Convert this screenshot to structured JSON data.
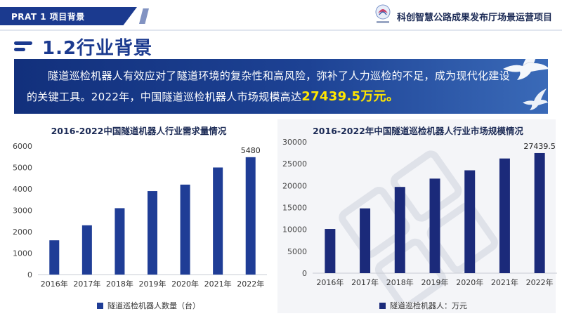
{
  "header": {
    "section_tag": "PRAT 1   项目背景",
    "project_title": "科创智慧公路成果发布厅场景运营项目"
  },
  "heading": "1.2行业背景",
  "banner": {
    "text": "隧道巡检机器人有效应对了隧道环境的复杂性和高风险，弥补了人力巡检的不足，成为现代化建设的关键工具。2022年，中国隧道巡检机器人市场规模高达",
    "highlight": "27439.5万元。"
  },
  "colors": {
    "brand": "#1b3a8f",
    "bar_left": "#1f3d96",
    "bar_right": "#1b2a7a",
    "highlight": "#ffe600"
  },
  "chart_data": [
    {
      "type": "bar",
      "title": "2016-2022中国隧道机器人行业需求量情况",
      "categories": [
        "2016年",
        "2017年",
        "2018年",
        "2019年",
        "2020年",
        "2021年",
        "2022年"
      ],
      "series": [
        {
          "name": "隧道巡检机器人数量（台）",
          "values": [
            1600,
            2300,
            3100,
            3900,
            4200,
            5000,
            5480
          ]
        }
      ],
      "data_labels": [
        {
          "category": "2022年",
          "text": "5480"
        }
      ],
      "ylim": [
        0,
        6000
      ],
      "yticks": [
        "0",
        "1000",
        "2000",
        "3000",
        "4000",
        "5000",
        "6000"
      ],
      "grid": false,
      "legend_position": "bottom"
    },
    {
      "type": "bar",
      "title": "2016-2022年中国隧道巡检机器人行业市场规模情况",
      "categories": [
        "2016年",
        "2017年",
        "2018年",
        "2019年",
        "2020年",
        "2021年",
        "2022年"
      ],
      "series": [
        {
          "name": "隧道巡检机器人：万元",
          "values": [
            10100,
            14800,
            19700,
            21600,
            23500,
            26200,
            27439.5
          ]
        }
      ],
      "data_labels": [
        {
          "category": "2022年",
          "text": "27439.5"
        }
      ],
      "ylim": [
        0,
        30000
      ],
      "yticks": [
        "0",
        "5000",
        "10000",
        "15000",
        "20000",
        "25000",
        "30000"
      ],
      "grid": false,
      "legend_position": "bottom"
    }
  ]
}
